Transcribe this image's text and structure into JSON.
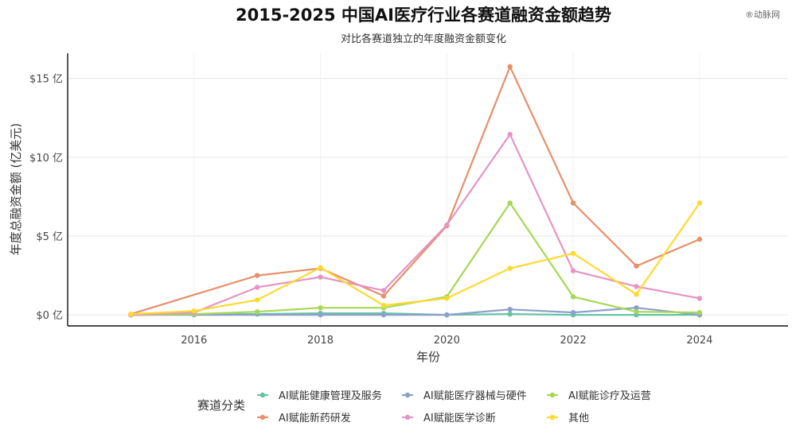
{
  "watermark": "®动脉网",
  "chart_data": {
    "type": "line",
    "title": "2015-2025 中国AI医疗行业各赛道融资金额趋势",
    "subtitle": "对比各赛道独立的年度融资金额变化",
    "xlabel": "年份",
    "ylabel": "年度总融资金额 (亿美元)",
    "x_ticks": [
      "2016",
      "2018",
      "2020",
      "2022",
      "2024"
    ],
    "y_ticks": [
      "$0 亿",
      "$5 亿",
      "$10 亿",
      "$15 亿"
    ],
    "y_tick_values": [
      0,
      5,
      10,
      15
    ],
    "xlim": [
      2014.0,
      2025.4
    ],
    "ylim": [
      -0.7,
      16.6
    ],
    "grid": true,
    "legend_title": "赛道分类",
    "legend_position": "bottom",
    "series": [
      {
        "name": "AI赋能健康管理及服务",
        "color": "#66c2a5",
        "x": [
          2015,
          2017,
          2018,
          2019,
          2020,
          2021,
          2022,
          2023,
          2024
        ],
        "values": [
          0.0,
          0.05,
          0.1,
          0.1,
          0.0,
          0.05,
          0.0,
          0.0,
          0.0
        ]
      },
      {
        "name": "AI赋能医疗器械与硬件",
        "color": "#8da0cb",
        "x": [
          2015,
          2016,
          2018,
          2019,
          2020,
          2021,
          2022,
          2023,
          2024
        ],
        "values": [
          0.0,
          0.0,
          0.0,
          0.0,
          0.0,
          0.35,
          0.15,
          0.45,
          0.0
        ]
      },
      {
        "name": "AI赋能诊疗及运营",
        "color": "#a6d854",
        "x": [
          2015,
          2016,
          2017,
          2018,
          2019,
          2020,
          2021,
          2022,
          2023,
          2024
        ],
        "values": [
          0.0,
          0.05,
          0.2,
          0.45,
          0.45,
          1.15,
          7.1,
          1.15,
          0.2,
          0.15
        ]
      },
      {
        "name": "AI赋能新药研发",
        "color": "#e78f6a",
        "x": [
          2015,
          2017,
          2018,
          2019,
          2020,
          2021,
          2022,
          2023,
          2024
        ],
        "values": [
          0.05,
          2.5,
          2.95,
          1.2,
          5.65,
          15.75,
          7.1,
          3.1,
          4.8
        ]
      },
      {
        "name": "AI赋能医学诊断",
        "color": "#e494c6",
        "x": [
          2015,
          2016,
          2017,
          2018,
          2019,
          2020,
          2021,
          2022,
          2023,
          2024
        ],
        "values": [
          0.0,
          0.15,
          1.75,
          2.4,
          1.55,
          5.7,
          11.45,
          2.8,
          1.8,
          1.05
        ]
      },
      {
        "name": "其他",
        "color": "#ffd92f",
        "x": [
          2015,
          2016,
          2017,
          2018,
          2019,
          2020,
          2021,
          2022,
          2023,
          2024
        ],
        "values": [
          0.05,
          0.25,
          0.95,
          3.0,
          0.6,
          1.05,
          2.95,
          3.9,
          1.3,
          7.1
        ]
      }
    ]
  }
}
